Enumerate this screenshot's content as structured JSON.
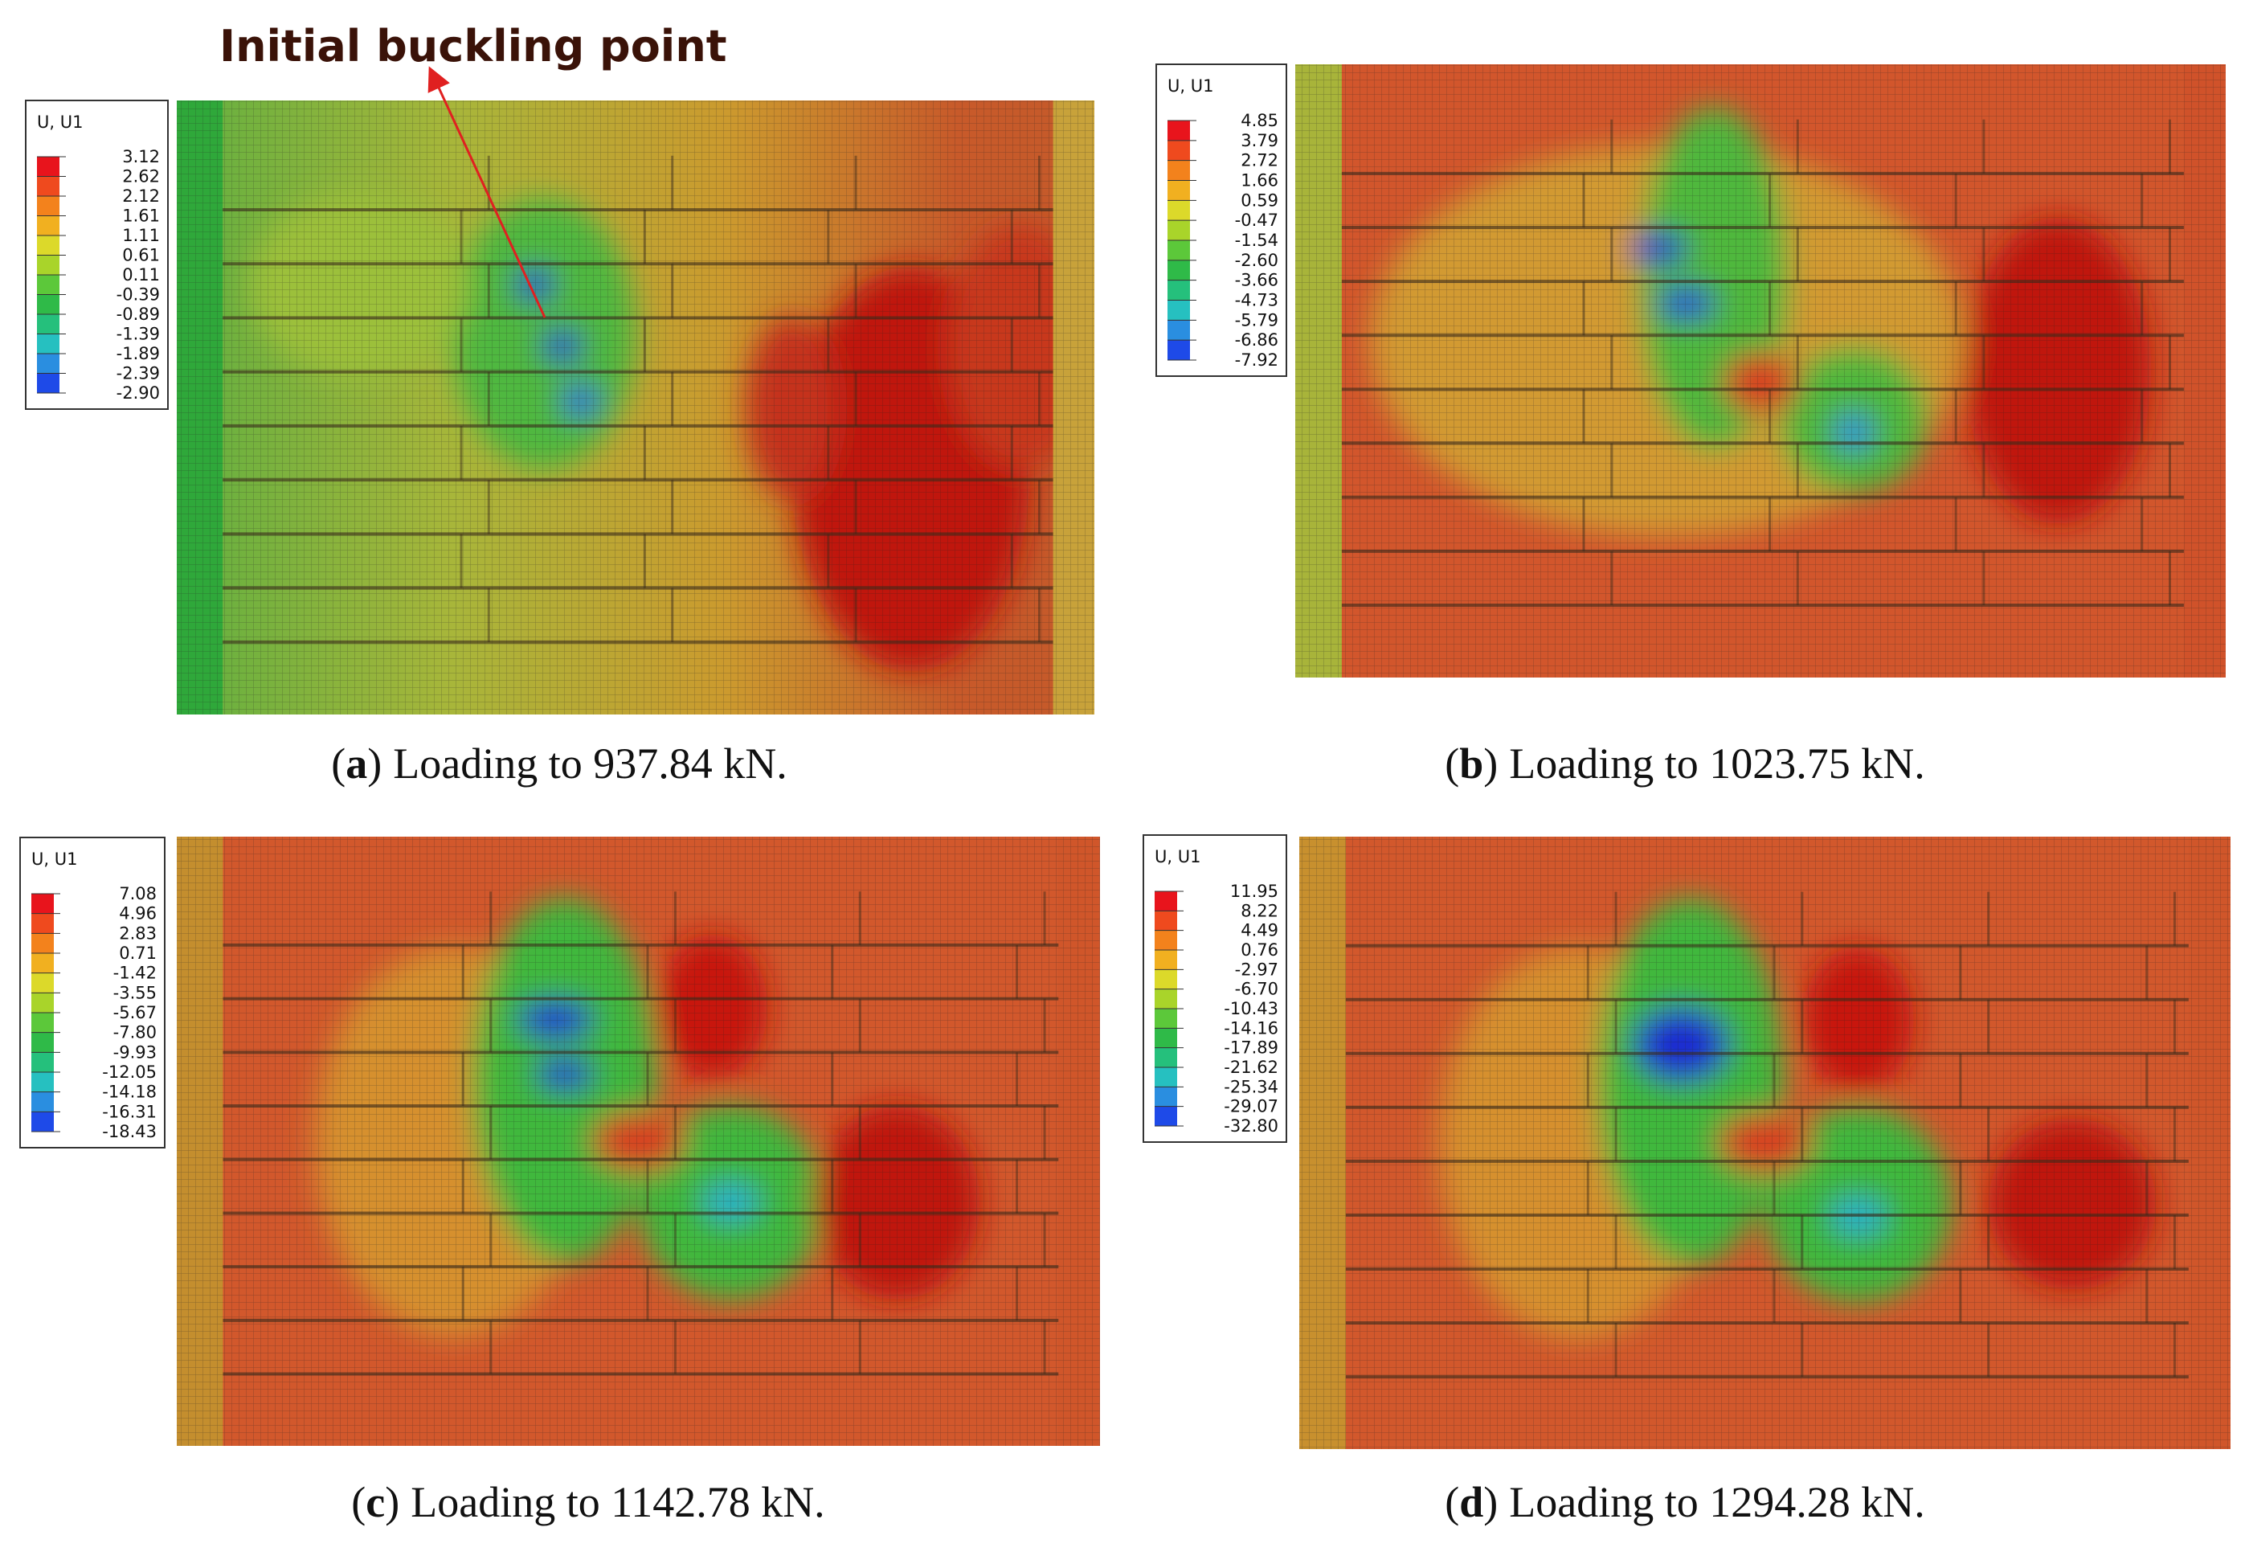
{
  "annotation": "Initial buckling point",
  "panels": [
    {
      "label": {
        "open": "(",
        "letter": "a",
        "close": ")"
      },
      "caption": "Loading to 937.84 kN.",
      "legend": {
        "title": "U, U1",
        "values": [
          "3.12",
          "2.62",
          "2.12",
          "1.61",
          "1.11",
          "0.61",
          "0.11",
          "-0.39",
          "-0.89",
          "-1.39",
          "-1.89",
          "-2.39",
          "-2.90"
        ]
      }
    },
    {
      "label": {
        "open": "(",
        "letter": "b",
        "close": ")"
      },
      "caption": "Loading to 1023.75 kN.",
      "legend": {
        "title": "U, U1",
        "values": [
          "4.85",
          "3.79",
          "2.72",
          "1.66",
          "0.59",
          "-0.47",
          "-1.54",
          "-2.60",
          "-3.66",
          "-4.73",
          "-5.79",
          "-6.86",
          "-7.92"
        ]
      }
    },
    {
      "label": {
        "open": "(",
        "letter": "c",
        "close": ")"
      },
      "caption": "Loading to 1142.78 kN.",
      "legend": {
        "title": "U, U1",
        "values": [
          "7.08",
          "4.96",
          "2.83",
          "0.71",
          "-1.42",
          "-3.55",
          "-5.67",
          "-7.80",
          "-9.93",
          "-12.05",
          "-14.18",
          "-16.31",
          "-18.43"
        ]
      }
    },
    {
      "label": {
        "open": "(",
        "letter": "d",
        "close": ")"
      },
      "caption": "Loading to 1294.28 kN.",
      "legend": {
        "title": "U, U1",
        "values": [
          "11.95",
          "8.22",
          "4.49",
          "0.76",
          "-2.97",
          "-6.70",
          "-10.43",
          "-14.16",
          "-17.89",
          "-21.62",
          "-25.34",
          "-29.07",
          "-32.80"
        ]
      }
    }
  ]
}
